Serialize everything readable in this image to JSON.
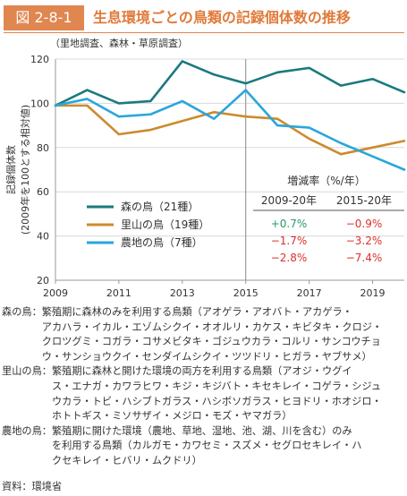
{
  "figure": {
    "badge": "図 2-8-1",
    "title": "生息環境ごとの鳥類の記録個体数の推移"
  },
  "chart_data": {
    "type": "line",
    "survey_note": "（里地調査、森林・草原調査）",
    "ylabel": "記録個体数\n(2009年を100とする相対値)",
    "x": [
      2009,
      2010,
      2011,
      2012,
      2013,
      2014,
      2015,
      2016,
      2017,
      2018,
      2019,
      2020
    ],
    "xlim": [
      2009,
      2020
    ],
    "ylim": [
      20,
      120
    ],
    "x_ticks": [
      "2009",
      "2011",
      "2013",
      "2015",
      "2017",
      "2019"
    ],
    "y_ticks": [
      "20",
      "40",
      "60",
      "80",
      "100",
      "120"
    ],
    "grid": "horizontal",
    "divider_year": 2015,
    "series": [
      {
        "name": "森の鳥（21種）",
        "color": "#1a7a7d",
        "values": [
          99,
          106,
          100,
          101,
          119,
          113,
          109,
          114,
          116,
          108,
          111,
          105
        ]
      },
      {
        "name": "里山の鳥（19種）",
        "color": "#cc8a2e",
        "values": [
          99,
          99,
          86,
          88,
          92,
          96,
          94,
          93,
          84,
          77,
          80,
          83
        ]
      },
      {
        "name": "農地の鳥（7種）",
        "color": "#2aa6dc",
        "values": [
          99,
          102,
          94,
          95,
          101,
          93,
          106,
          90,
          89,
          82,
          76,
          70
        ]
      }
    ],
    "legend_position": "bottom-left",
    "rates_table": {
      "title": "増減率（%/年）",
      "headers": [
        "2009-20年",
        "2015-20年"
      ],
      "rows": [
        {
          "a": "+0.7%",
          "b": "−0.9%",
          "a_color": "#2a9a6a",
          "b_color": "#d9312b"
        },
        {
          "a": "−1.7%",
          "b": "−3.2%",
          "a_color": "#d9312b",
          "b_color": "#d9312b"
        },
        {
          "a": "−2.8%",
          "b": "−7.4%",
          "a_color": "#d9312b",
          "b_color": "#d9312b"
        }
      ]
    }
  },
  "descriptions": [
    {
      "label": "森の鳥：",
      "lines": [
        "繁殖期に森林のみを利用する鳥類（アオゲラ・アオバト・アカゲラ・",
        "アカハラ・イカル・エゾムシクイ・オオルリ・カケス・キビタキ・クロジ・",
        "クロツグミ・コガラ・コサメビタキ・ゴジュウカラ・コルリ・サンコウチョ",
        "ウ・サンショウクイ・センダイムシクイ・ツツドリ・ヒガラ・ヤブサメ）"
      ]
    },
    {
      "label": "里山の鳥：",
      "lines": [
        "繁殖期に森林と開けた環境の両方を利用する鳥類（アオジ・ウグイ",
        "ス・エナガ・カワラヒワ・キジ・キジバト・キセキレイ・コゲラ・シジュ",
        "ウカラ・トビ・ハシブトガラス・ハシボソガラス・ヒヨドリ・ホオジロ・",
        "ホトトギス・ミソサザイ・メジロ・モズ・ヤマガラ）"
      ]
    },
    {
      "label": "農地の鳥：",
      "lines": [
        "繁殖期に開けた環境（農地、草地、湿地、池、湖、川を含む）のみ",
        "を利用する鳥類（カルガモ・カワセミ・スズメ・セグロセキレイ・ハ",
        "クセキレイ・ヒバリ・ムクドリ）"
      ]
    }
  ],
  "source": "資料：環境省"
}
